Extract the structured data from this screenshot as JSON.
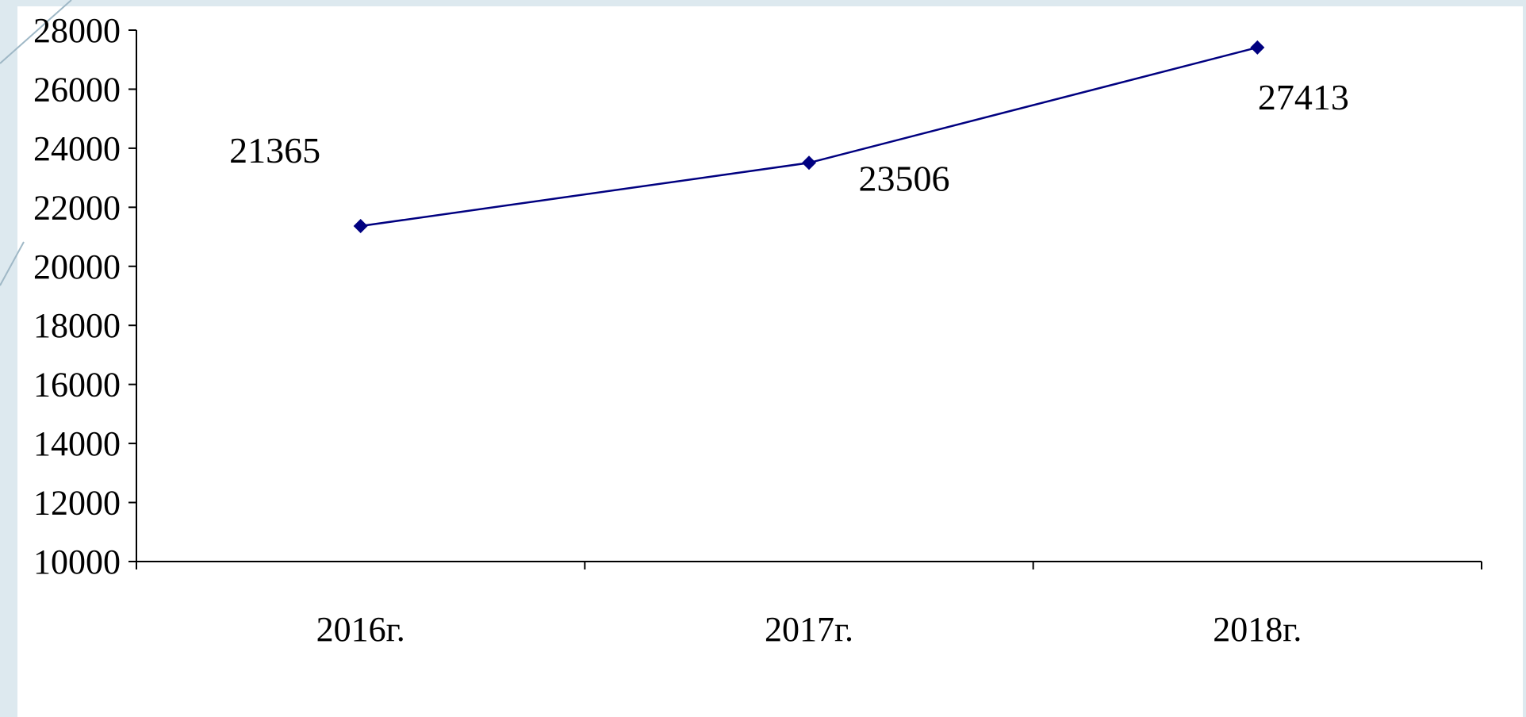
{
  "chart_data": {
    "type": "line",
    "categories": [
      "2016г.",
      "2017г.",
      "2018г."
    ],
    "series": [
      {
        "values": [
          21365,
          23506,
          27413
        ]
      }
    ],
    "data_labels": [
      "21365",
      "23506",
      "27413"
    ],
    "y_ticks": [
      "10000",
      "12000",
      "14000",
      "16000",
      "18000",
      "20000",
      "22000",
      "24000",
      "26000",
      "28000"
    ],
    "ylim": [
      10000,
      28000
    ],
    "title": "",
    "xlabel": "",
    "ylabel": "",
    "grid": false,
    "legend": "none",
    "line_color": "#000080",
    "marker": "diamond"
  }
}
